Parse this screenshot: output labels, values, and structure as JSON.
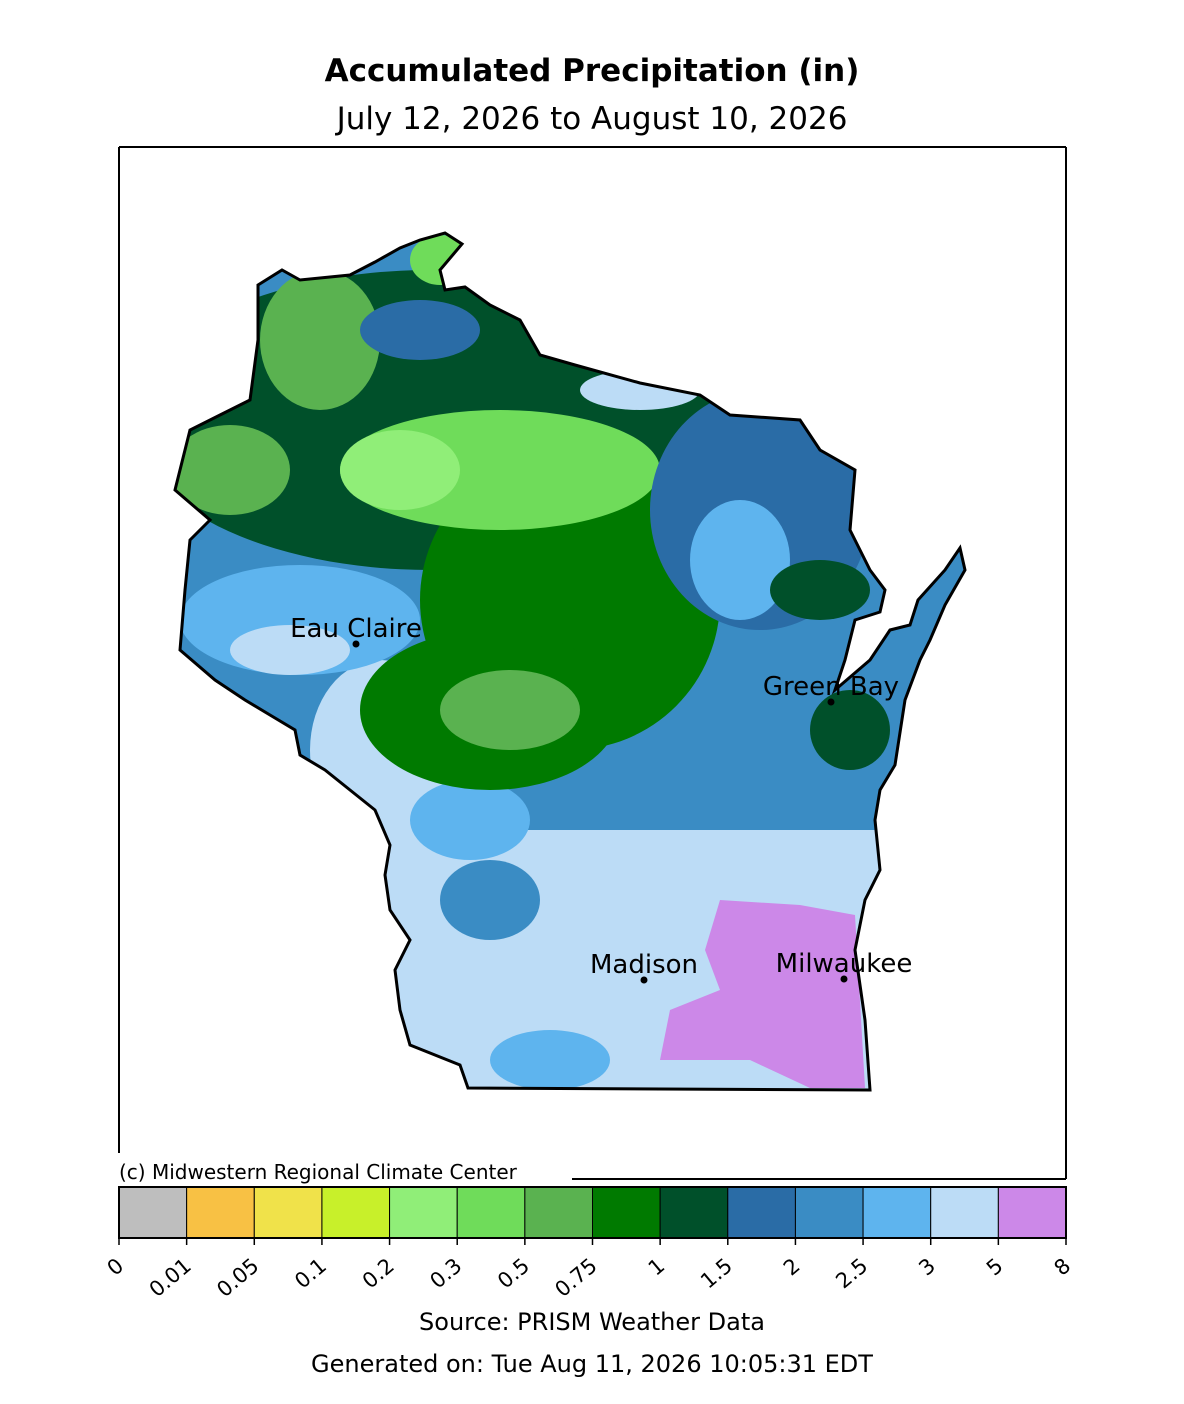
{
  "header": {
    "title": "Accumulated Precipitation (in)",
    "subtitle": "July 12, 2026 to August 10, 2026"
  },
  "map": {
    "cities": [
      "Eau Claire",
      "Green Bay",
      "Madison",
      "Milwaukee"
    ],
    "credit": "(c) Midwestern Regional Climate Center"
  },
  "colorbar": {
    "ticks": [
      0,
      0.01,
      0.05,
      0.1,
      0.2,
      0.3,
      0.5,
      0.75,
      1,
      1.5,
      2,
      2.5,
      3,
      5,
      8
    ],
    "colors": [
      "#bebebe",
      "#f8c144",
      "#f0e24a",
      "#c8f02a",
      "#90ee78",
      "#6fdc5a",
      "#5ab250",
      "#007a00",
      "#00502a",
      "#2a6ca6",
      "#3a8cc4",
      "#5eb4ee",
      "#bcdcf6",
      "#cc88e8"
    ]
  },
  "footer": {
    "source": "Source: PRISM Weather Data",
    "generated": "Generated on: Tue Aug 11, 2026 10:05:31 EDT"
  }
}
